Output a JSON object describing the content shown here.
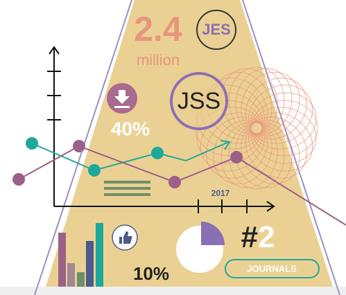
{
  "headline": {
    "number": "2.4",
    "unit": "million"
  },
  "badges": {
    "top": "JES",
    "main": "JSS"
  },
  "stats": {
    "download_share": "40%",
    "like_share": "10%"
  },
  "timeline": {
    "year": "2017"
  },
  "rank": {
    "symbol": "#",
    "number": "2",
    "label": "JOURNALS"
  }
}
